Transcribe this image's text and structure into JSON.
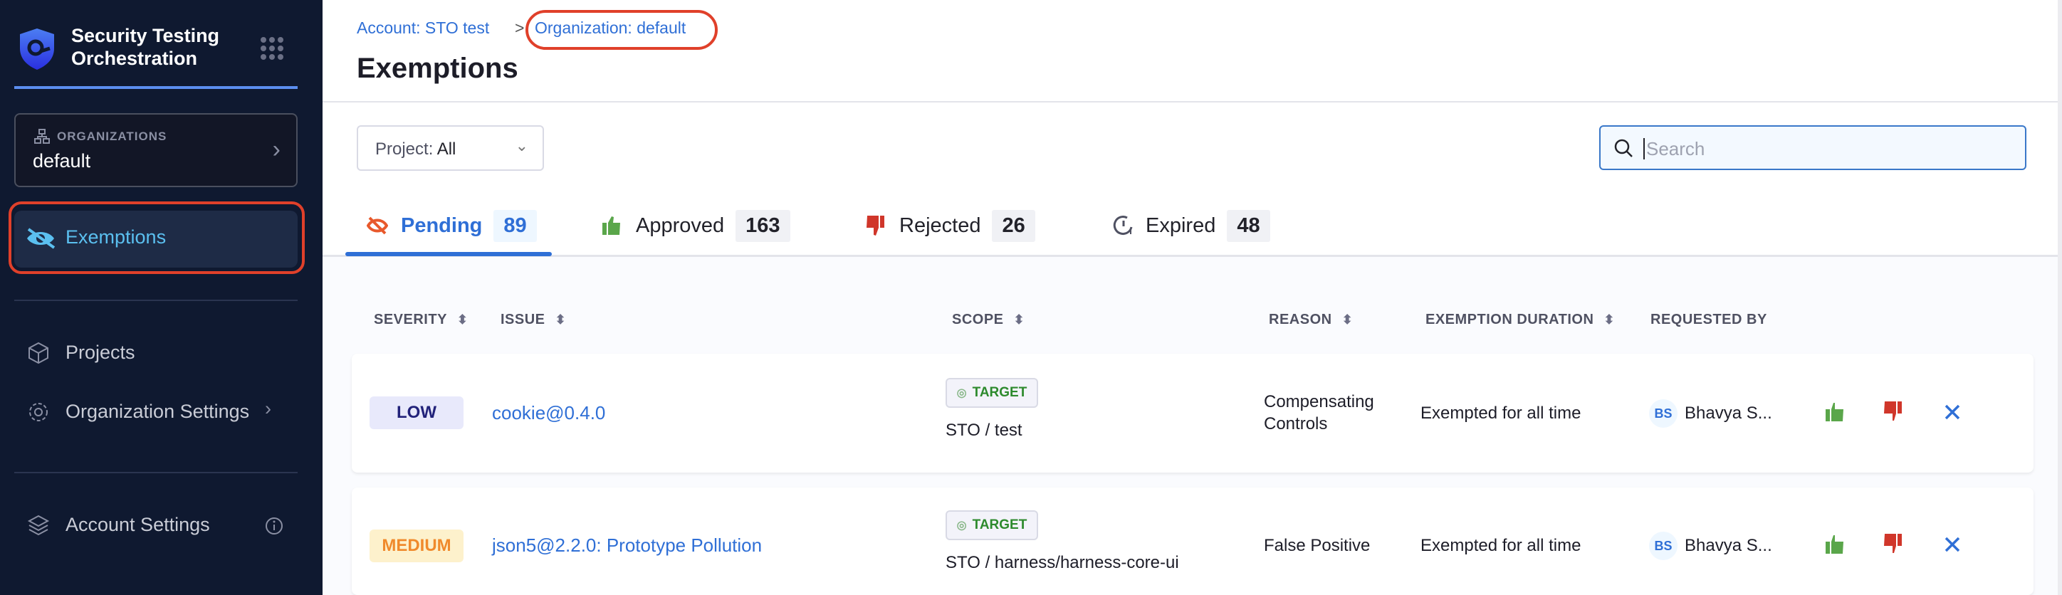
{
  "sidebar": {
    "title_line1": "Security Testing",
    "title_line2": "Orchestration",
    "org_label": "ORGANIZATIONS",
    "org_value": "default",
    "items": [
      {
        "label": "Exemptions"
      },
      {
        "label": "Projects"
      },
      {
        "label": "Organization Settings"
      },
      {
        "label": "Account Settings"
      }
    ]
  },
  "breadcrumb": {
    "account": "Account: STO test",
    "separator": ">",
    "organization": "Organization: default"
  },
  "page_title": "Exemptions",
  "filter": {
    "label": "Project:",
    "value": "All"
  },
  "search": {
    "placeholder": "Search"
  },
  "tabs": [
    {
      "label": "Pending",
      "count": "89"
    },
    {
      "label": "Approved",
      "count": "163"
    },
    {
      "label": "Rejected",
      "count": "26"
    },
    {
      "label": "Expired",
      "count": "48"
    }
  ],
  "columns": [
    "SEVERITY",
    "ISSUE",
    "SCOPE",
    "REASON",
    "EXEMPTION DURATION",
    "REQUESTED BY"
  ],
  "rows": [
    {
      "severity": "LOW",
      "issue": "cookie@0.4.0",
      "scope_tag": "TARGET",
      "scope": "STO / test",
      "reason_line1": "Compensating",
      "reason_line2": "Controls",
      "duration": "Exempted for all time",
      "initials": "BS",
      "requester": "Bhavya S..."
    },
    {
      "severity": "MEDIUM",
      "issue": "json5@2.2.0: Prototype Pollution",
      "scope_tag": "TARGET",
      "scope": "STO / harness/harness-core-ui",
      "reason_line1": "False Positive",
      "reason_line2": "",
      "duration": "Exempted for all time",
      "initials": "BS",
      "requester": "Bhavya S..."
    }
  ],
  "colors": {
    "accent": "#2f6fd6",
    "sidebar_bg": "#0f1930",
    "approve": "#5aa64a",
    "reject": "#d0362a",
    "highlight": "#e0402a",
    "low_bg": "#e8e9fb",
    "low_fg": "#22227a",
    "medium_bg": "#fdf1cc",
    "medium_fg": "#f08a2c"
  }
}
